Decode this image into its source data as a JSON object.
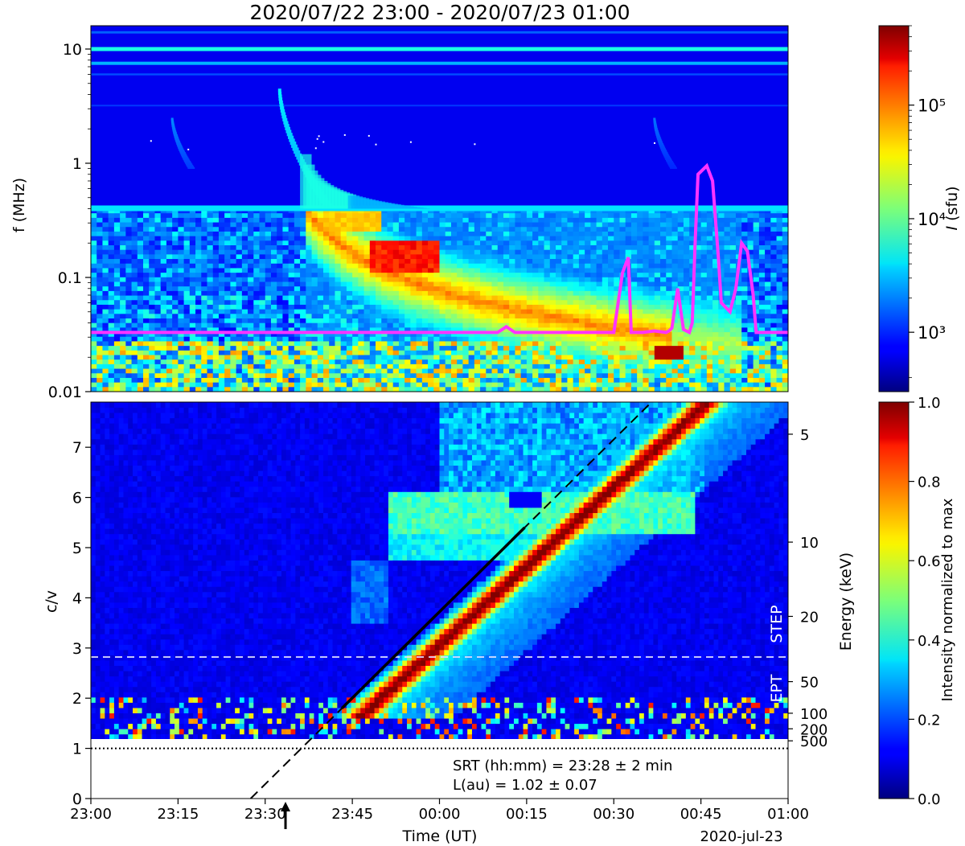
{
  "figure": {
    "title": "2020/07/22 23:00 - 2020/07/23 01:00"
  },
  "chart_data": [
    {
      "type": "heatmap",
      "panel": "radio-dynamic-spectrum",
      "ylabel": "f (MHz)",
      "yscale": "log",
      "ylim": [
        0.01,
        16
      ],
      "yticks": [
        {
          "value": 0.01,
          "label": "0.01"
        },
        {
          "value": 0.1,
          "label": "0.1"
        },
        {
          "value": 1,
          "label": "1"
        },
        {
          "value": 10,
          "label": "10"
        }
      ],
      "xlim_min": [
        0,
        120
      ],
      "colorbar": {
        "label": "I (sfu)",
        "scale": "log",
        "range": [
          300,
          500000
        ],
        "ticks": [
          {
            "value": 1000,
            "label": "10³"
          },
          {
            "value": 10000,
            "label": "10⁴"
          },
          {
            "value": 100000,
            "label": "10⁵"
          }
        ]
      },
      "overlay_curve": {
        "color": "#ff33ff",
        "time_min": [
          0,
          70,
          71.5,
          73,
          90,
          91.5,
          92.5,
          93,
          94.5,
          95,
          97,
          99,
          99.5,
          100,
          101,
          102,
          103,
          103.5,
          104,
          104.5,
          106,
          107,
          108,
          108.5,
          110,
          111,
          112,
          113,
          114,
          114.5,
          116,
          120
        ],
        "freq_mhz": [
          0.033,
          0.033,
          0.037,
          0.033,
          0.033,
          0.11,
          0.15,
          0.033,
          0.033,
          0.033,
          0.034,
          0.033,
          0.034,
          0.036,
          0.08,
          0.035,
          0.033,
          0.04,
          0.2,
          0.8,
          0.95,
          0.7,
          0.15,
          0.06,
          0.05,
          0.08,
          0.2,
          0.17,
          0.07,
          0.033,
          0.033,
          0.033
        ]
      },
      "bursts_start_min": [
        8,
        19,
        40,
        96
      ]
    },
    {
      "type": "heatmap",
      "panel": "electron-velocity-dispersion",
      "xlabel": "Time (UT)",
      "ylabel": "c/v",
      "ylim": [
        0,
        7.9
      ],
      "yticks": [
        0,
        1,
        2,
        3,
        4,
        5,
        6,
        7
      ],
      "xlim_min": [
        0,
        120
      ],
      "xticks": [
        {
          "value": 0,
          "label": "23:00"
        },
        {
          "value": 15,
          "label": "23:15"
        },
        {
          "value": 30,
          "label": "23:30"
        },
        {
          "value": 45,
          "label": "23:45"
        },
        {
          "value": 60,
          "label": "00:00"
        },
        {
          "value": 75,
          "label": "00:15"
        },
        {
          "value": 90,
          "label": "00:30"
        },
        {
          "value": 105,
          "label": "00:45"
        },
        {
          "value": 120,
          "label": "01:00"
        }
      ],
      "date_label": "2020-jul-23",
      "right_axis": {
        "label": "Energy (keV)",
        "ticks": [
          {
            "cv": 7.26,
            "label": "5"
          },
          {
            "cv": 5.11,
            "label": "10"
          },
          {
            "cv": 3.63,
            "label": "20"
          },
          {
            "cv": 2.33,
            "label": "50"
          },
          {
            "cv": 1.7,
            "label": "100"
          },
          {
            "cv": 1.39,
            "label": "200"
          },
          {
            "cv": 1.15,
            "label": "500"
          }
        ]
      },
      "instrument_labels": [
        "STEP",
        "EPT"
      ],
      "instrument_boundary_cv": 2.82,
      "speed_of_light_cv": 1.0,
      "fit_line": {
        "x_min": [
          27.5,
          96.5
        ],
        "cv": [
          0,
          7.9
        ],
        "solid_cv": [
          1.8,
          5.4
        ]
      },
      "srt_arrow_min": 33.5,
      "annotations": [
        "SRT (hh:mm) = 23:28 ± 2 min",
        "L(au) = 1.02 ± 0.07"
      ],
      "colorbar": {
        "label": "Intensity normalized to max",
        "range": [
          0,
          1
        ],
        "ticks": [
          0.0,
          0.2,
          0.4,
          0.6,
          0.8,
          1.0
        ],
        "tick_labels": [
          "0.0",
          "0.2",
          "0.4",
          "0.6",
          "0.8",
          "1.0"
        ]
      }
    }
  ]
}
